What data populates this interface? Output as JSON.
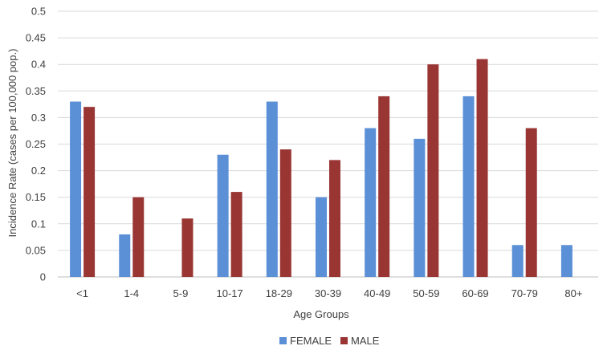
{
  "chart_data": {
    "type": "bar",
    "title": "",
    "xlabel": "Age Groups",
    "ylabel": "Incidence Rate (cases per 100,000 pop.)",
    "ylim": [
      0,
      0.5
    ],
    "yticks": [
      "0",
      "0.05",
      "0.1",
      "0.15",
      "0.2",
      "0.25",
      "0.3",
      "0.35",
      "0.4",
      "0.45",
      "0.5"
    ],
    "grid": true,
    "legend_position": "bottom",
    "categories": [
      "<1",
      "1-4",
      "5-9",
      "10-17",
      "18-29",
      "30-39",
      "40-49",
      "50-59",
      "60-69",
      "70-79",
      "80+"
    ],
    "series": [
      {
        "name": "FEMALE",
        "color": "#5b8fd6",
        "values": [
          0.33,
          0.08,
          0,
          0.23,
          0.33,
          0.15,
          0.28,
          0.26,
          0.34,
          0.06,
          0.06
        ]
      },
      {
        "name": "MALE",
        "color": "#993634",
        "values": [
          0.32,
          0.15,
          0.11,
          0.16,
          0.24,
          0.22,
          0.34,
          0.4,
          0.41,
          0.28,
          0
        ]
      }
    ]
  }
}
